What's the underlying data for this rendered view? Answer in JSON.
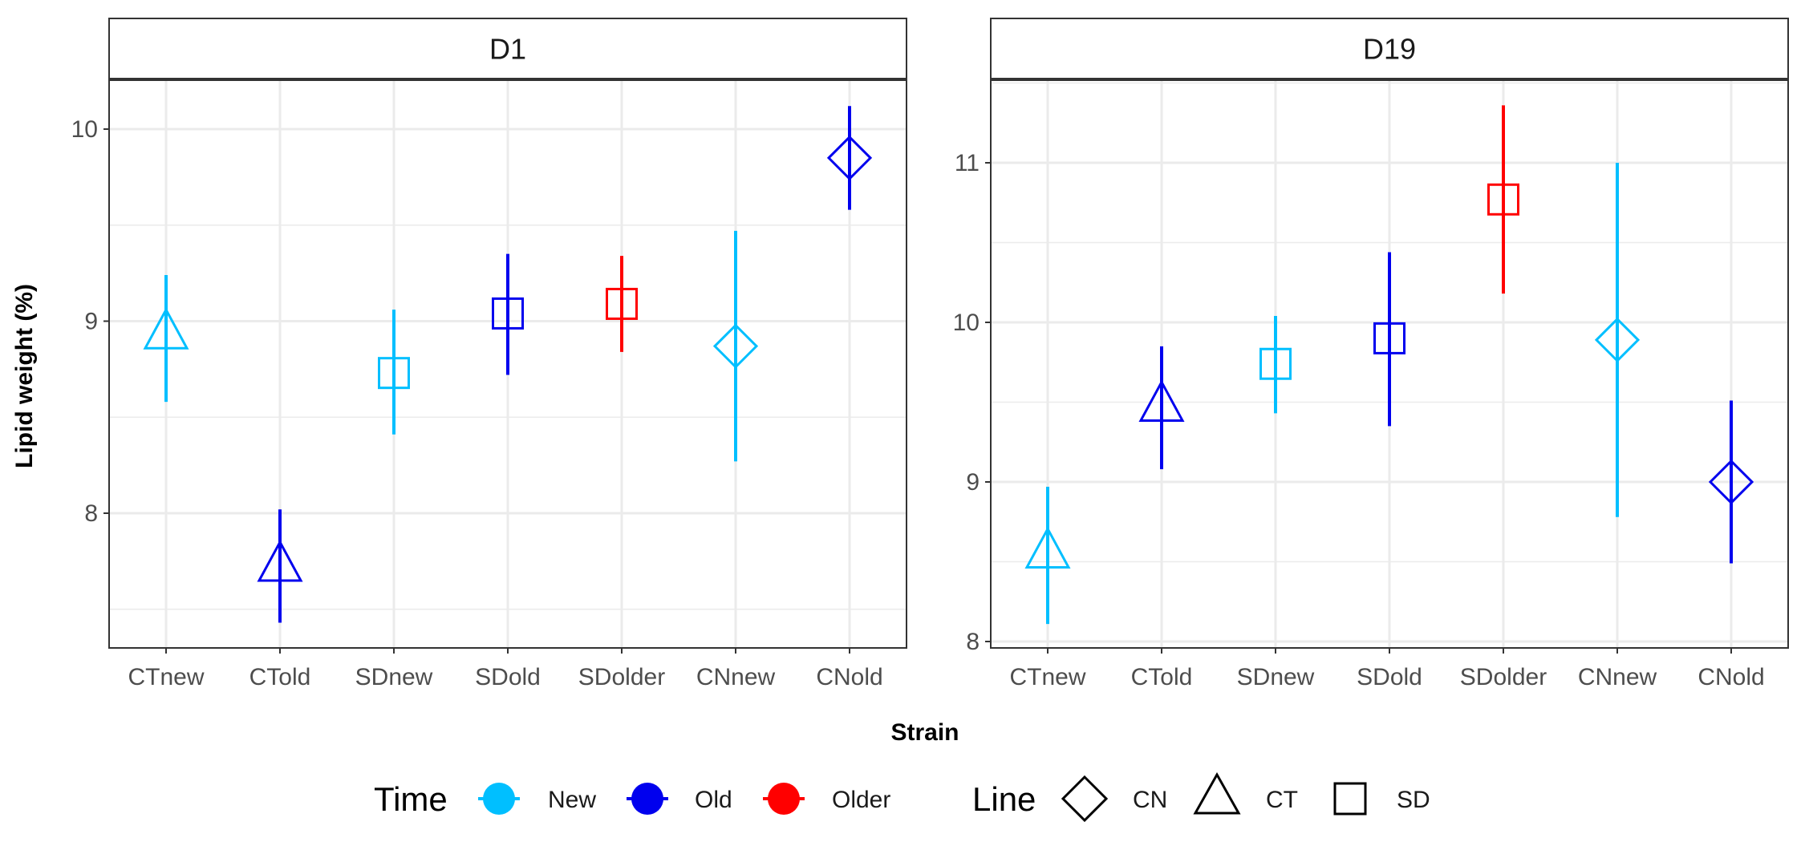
{
  "chart_data": {
    "type": "scatter",
    "categories": [
      "CTnew",
      "CTold",
      "SDnew",
      "SDold",
      "SDolder",
      "CNnew",
      "CNold"
    ],
    "xlabel": "Strain",
    "ylabel": "Lipid weight (%)",
    "grid": true,
    "legend_position": "bottom",
    "legends": {
      "time": {
        "title": "Time",
        "entries": [
          {
            "label": "New",
            "color": "#00bfff"
          },
          {
            "label": "Old",
            "color": "#0000ee"
          },
          {
            "label": "Older",
            "color": "#ff0000"
          }
        ]
      },
      "line": {
        "title": "Line",
        "entries": [
          {
            "label": "CN",
            "shape": "diamond"
          },
          {
            "label": "CT",
            "shape": "triangle"
          },
          {
            "label": "SD",
            "shape": "square"
          }
        ]
      }
    },
    "panels": [
      {
        "title": "D1",
        "ylim": [
          7.5,
          10.25
        ],
        "yticks": [
          8,
          9,
          10
        ],
        "points": [
          {
            "x": "CTnew",
            "y": 8.93,
            "low": 8.58,
            "high": 9.24,
            "time": "New",
            "line": "CT"
          },
          {
            "x": "CTold",
            "y": 7.72,
            "low": 7.43,
            "high": 8.02,
            "time": "Old",
            "line": "CT"
          },
          {
            "x": "SDnew",
            "y": 8.73,
            "low": 8.41,
            "high": 9.06,
            "time": "New",
            "line": "SD"
          },
          {
            "x": "SDold",
            "y": 9.04,
            "low": 8.72,
            "high": 9.35,
            "time": "Old",
            "line": "SD"
          },
          {
            "x": "SDolder",
            "y": 9.09,
            "low": 8.84,
            "high": 9.34,
            "time": "Older",
            "line": "SD"
          },
          {
            "x": "CNnew",
            "y": 8.87,
            "low": 8.27,
            "high": 9.47,
            "time": "New",
            "line": "CN"
          },
          {
            "x": "CNold",
            "y": 9.85,
            "low": 9.58,
            "high": 10.12,
            "time": "Old",
            "line": "CN"
          }
        ]
      },
      {
        "title": "D19",
        "ylim": [
          8.0,
          11.5
        ],
        "yticks": [
          8,
          9,
          10,
          11
        ],
        "points": [
          {
            "x": "CTnew",
            "y": 8.55,
            "low": 8.11,
            "high": 8.97,
            "time": "New",
            "line": "CT"
          },
          {
            "x": "CTold",
            "y": 9.47,
            "low": 9.08,
            "high": 9.85,
            "time": "Old",
            "line": "CT"
          },
          {
            "x": "SDnew",
            "y": 9.74,
            "low": 9.43,
            "high": 10.04,
            "time": "New",
            "line": "SD"
          },
          {
            "x": "SDold",
            "y": 9.9,
            "low": 9.35,
            "high": 10.44,
            "time": "Old",
            "line": "SD"
          },
          {
            "x": "SDolder",
            "y": 10.77,
            "low": 10.18,
            "high": 11.36,
            "time": "Older",
            "line": "SD"
          },
          {
            "x": "CNnew",
            "y": 9.89,
            "low": 8.78,
            "high": 11.0,
            "time": "New",
            "line": "CN"
          },
          {
            "x": "CNold",
            "y": 9.0,
            "low": 8.49,
            "high": 9.51,
            "time": "Old",
            "line": "CN"
          }
        ]
      }
    ]
  }
}
